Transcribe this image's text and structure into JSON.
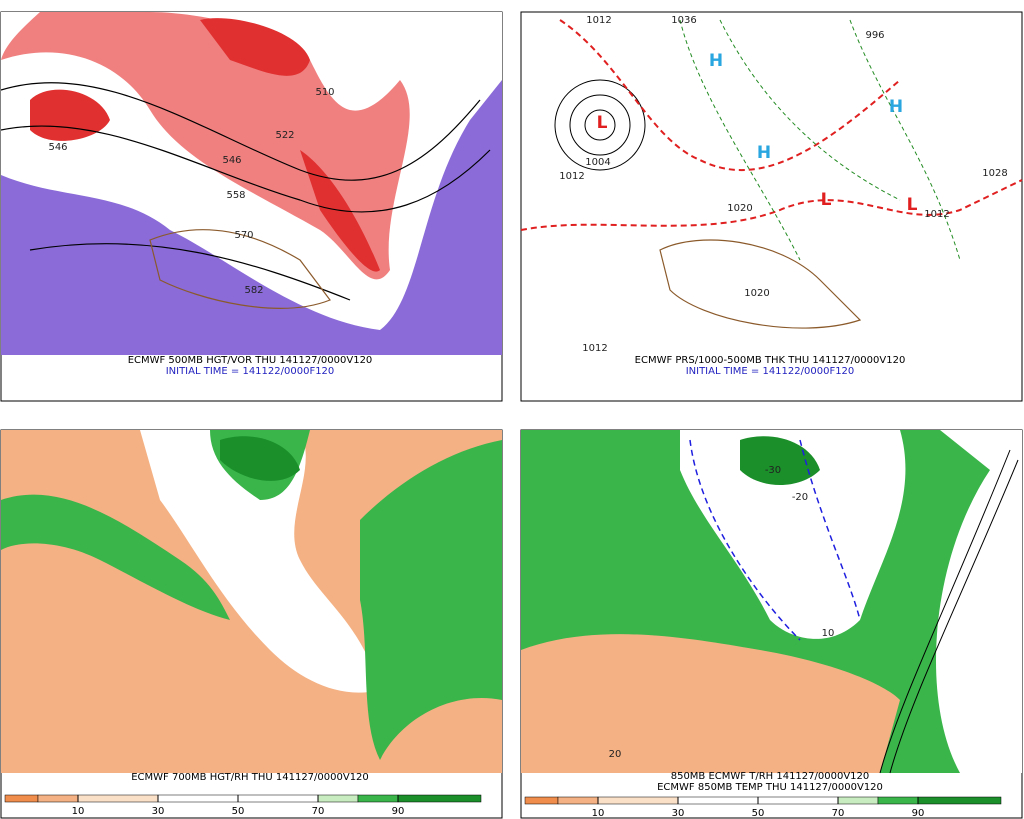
{
  "panels": [
    {
      "caption": "ECMWF 500MB HGT/VOR THU 141127/0000V120",
      "subcaption": "INITIAL TIME = 141122/0000F120",
      "labels": [
        "546",
        "546",
        "522",
        "510",
        "558",
        "570",
        "582"
      ]
    },
    {
      "caption": "ECMWF PRS/1000-500MB THK THU 141127/0000V120",
      "subcaption": "INITIAL TIME = 141122/0000F120",
      "labels": [
        "1012",
        "1036",
        "996",
        "1004",
        "1012",
        "1020",
        "1020",
        "1028",
        "1012",
        "1012"
      ],
      "highs": [
        "H",
        "H",
        "H"
      ],
      "lows": [
        "L",
        "L",
        "L"
      ]
    },
    {
      "caption": "ECMWF 700MB HGT/RH THU 141127/0000V120",
      "colorbar_ticks": [
        10,
        30,
        50,
        70,
        90
      ]
    },
    {
      "caption": "850MB ECMWF T/RH 141127/0000V120",
      "subcaption": "ECMWF 850MB TEMP THU 141127/0000V120",
      "labels": [
        "10",
        "-30",
        "-20",
        "20"
      ],
      "colorbar_ticks": [
        10,
        30,
        50,
        70,
        90
      ]
    }
  ]
}
